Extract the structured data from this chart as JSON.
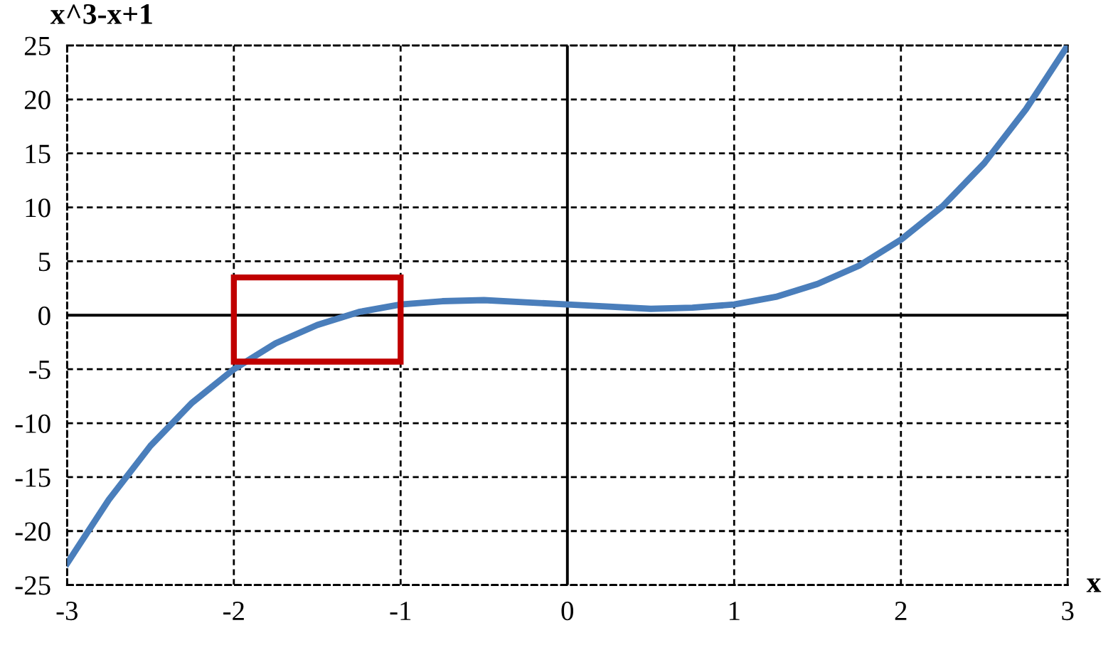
{
  "chart_data": {
    "type": "line",
    "ylabel": "x^3-x+1",
    "xlabel": "x",
    "x": [
      -3,
      -2.75,
      -2.5,
      -2.25,
      -2,
      -1.75,
      -1.5,
      -1.25,
      -1,
      -0.75,
      -0.5,
      -0.25,
      0,
      0.25,
      0.5,
      0.75,
      1,
      1.25,
      1.5,
      1.75,
      2,
      2.25,
      2.5,
      2.75,
      3
    ],
    "series": [
      {
        "color": "#4a7ebb",
        "values": [
          -23,
          -17.1,
          -12.1,
          -8.1,
          -5,
          -2.6,
          -0.9,
          0.3,
          1,
          1.3,
          1.4,
          1.2,
          1,
          0.8,
          0.6,
          0.7,
          1,
          1.7,
          2.9,
          4.6,
          7,
          10.1,
          14.1,
          19.1,
          25
        ]
      }
    ],
    "xlim": [
      -3,
      3
    ],
    "xticks": [
      -3,
      -2,
      -1,
      0,
      1,
      2,
      3
    ],
    "ylim": [
      -25,
      25
    ],
    "yticks": [
      -25,
      -20,
      -15,
      -10,
      -5,
      0,
      5,
      10,
      15,
      20,
      25
    ],
    "grid": true,
    "line_style": "solid",
    "marker": "none",
    "legend": false
  }
}
